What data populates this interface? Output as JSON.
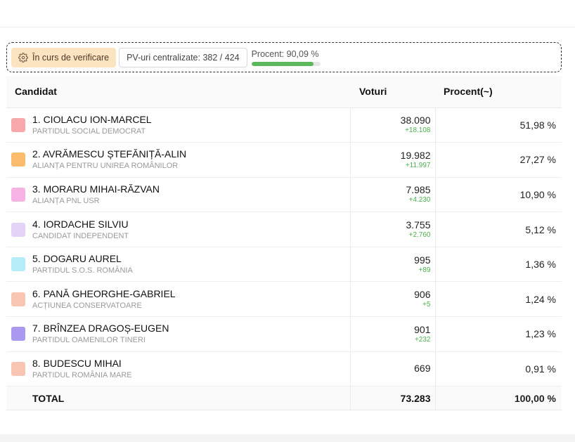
{
  "status": {
    "verification_label": "În curs de verificare",
    "pv_label": "PV-uri centralizate: 382 / 424",
    "progress_label": "Procent: 90,09 %",
    "progress_fraction": 0.9009,
    "progress_color": "#5cb85c"
  },
  "table": {
    "headers": {
      "candidate": "Candidat",
      "votes": "Voturi",
      "percent": "Procent(~)"
    },
    "rows": [
      {
        "name": "1. CIOLACU ION-MARCEL",
        "party": "PARTIDUL SOCIAL DEMOCRAT",
        "votes": "38.090",
        "delta": "+18.108",
        "percent": "51,98 %",
        "color": "#f7a8ab"
      },
      {
        "name": "2. AVRĂMESCU ȘTEFĂNIȚĂ-ALIN",
        "party": "ALIANȚA PENTRU UNIREA ROMÂNILOR",
        "votes": "19.982",
        "delta": "+11.997",
        "percent": "27,27 %",
        "color": "#fbbc6e"
      },
      {
        "name": "3. MORARU MIHAI-RĂZVAN",
        "party": "ALIANȚA PNL USR",
        "votes": "7.985",
        "delta": "+4.230",
        "percent": "10,90 %",
        "color": "#f7b3e4"
      },
      {
        "name": "4. IORDACHE SILVIU",
        "party": "CANDIDAT INDEPENDENT",
        "votes": "3.755",
        "delta": "+2.760",
        "percent": "5,12 %",
        "color": "#e4d2f7"
      },
      {
        "name": "5. DOGARU AUREL",
        "party": "PARTIDUL S.O.S. ROMÂNIA",
        "votes": "995",
        "delta": "+89",
        "percent": "1,36 %",
        "color": "#b4ecf7"
      },
      {
        "name": "6. PANĂ GHEORGHE-GABRIEL",
        "party": "ACȚIUNEA CONSERVATOARE",
        "votes": "906",
        "delta": "+5",
        "percent": "1,24 %",
        "color": "#f7c5b2"
      },
      {
        "name": "7. BRÎNZEA DRAGOȘ-EUGEN",
        "party": "PARTIDUL OAMENILOR TINERI",
        "votes": "901",
        "delta": "+232",
        "percent": "1,23 %",
        "color": "#a99af0"
      },
      {
        "name": "8. BUDESCU MIHAI",
        "party": "PARTIDUL ROMÂNIA MARE",
        "votes": "669",
        "delta": "",
        "percent": "0,91 %",
        "color": "#f7c5b2"
      }
    ],
    "total": {
      "label": "TOTAL",
      "votes": "73.283",
      "percent": "100,00 %"
    }
  }
}
